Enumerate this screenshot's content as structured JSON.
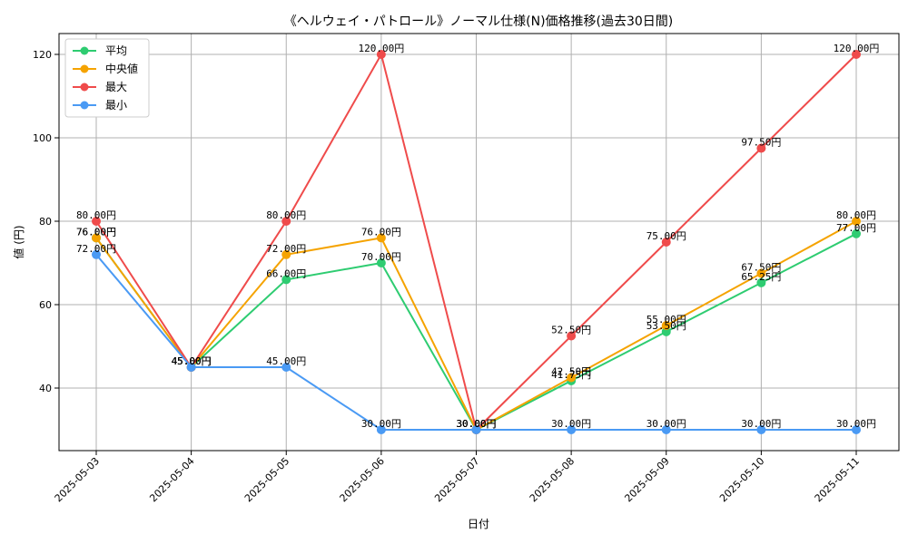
{
  "chart_data": {
    "type": "line",
    "title": "《ヘルウェイ・パトロール》ノーマル仕様(N)価格推移(過去30日間)",
    "xlabel": "日付",
    "ylabel": "値 (円)",
    "categories": [
      "2025-05-03",
      "2025-05-04",
      "2025-05-05",
      "2025-05-06",
      "2025-05-07",
      "2025-05-08",
      "2025-05-09",
      "2025-05-10",
      "2025-05-11"
    ],
    "ylim": [
      25,
      125
    ],
    "yticks": [
      40,
      60,
      80,
      100,
      120
    ],
    "grid": true,
    "legend_position": "top-left",
    "value_suffix": "円",
    "series": [
      {
        "name": "平均",
        "color": "#2ecc71",
        "values": [
          76.0,
          45.0,
          66.0,
          70.0,
          30.0,
          41.75,
          53.5,
          65.25,
          77.0
        ]
      },
      {
        "name": "中央値",
        "color": "#f5a300",
        "values": [
          76.0,
          45.0,
          72.0,
          76.0,
          30.0,
          42.5,
          55.0,
          67.5,
          80.0
        ]
      },
      {
        "name": "最大",
        "color": "#ef4b4b",
        "values": [
          80.0,
          45.0,
          80.0,
          120.0,
          30.0,
          52.5,
          75.0,
          97.5,
          120.0
        ]
      },
      {
        "name": "最小",
        "color": "#4a9af4",
        "values": [
          72.0,
          45.0,
          45.0,
          30.0,
          30.0,
          30.0,
          30.0,
          30.0,
          30.0
        ]
      }
    ]
  }
}
